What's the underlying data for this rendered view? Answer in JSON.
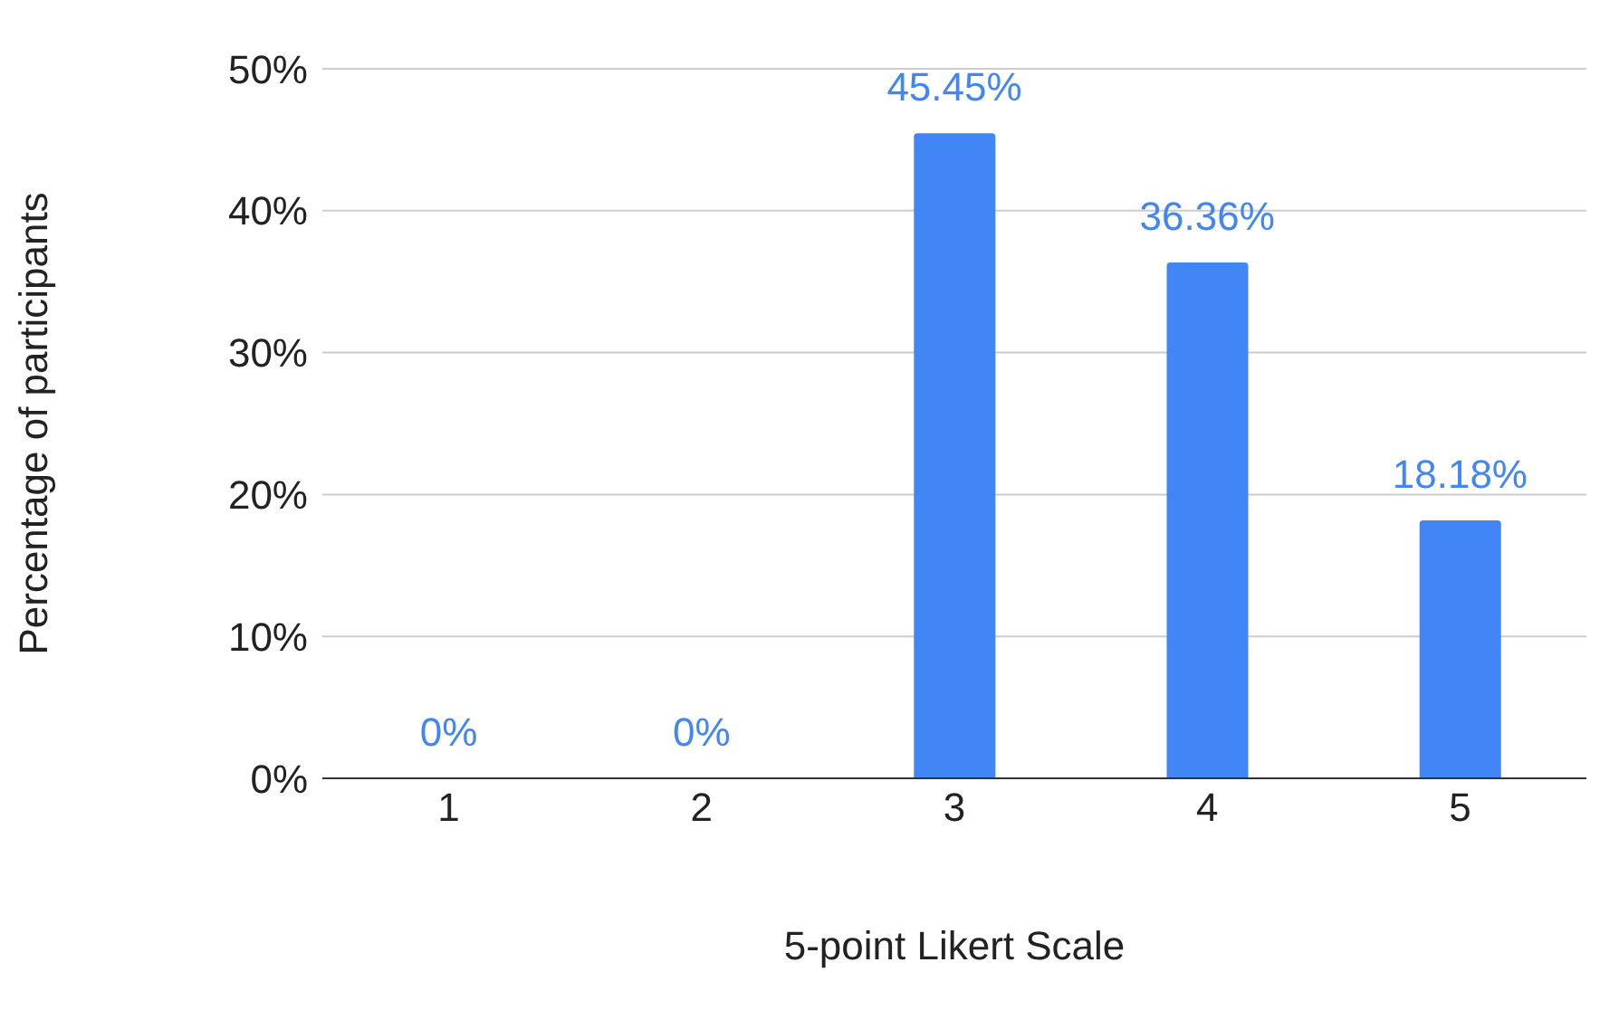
{
  "chart_data": {
    "type": "bar",
    "xlabel": "5-point Likert Scale",
    "ylabel": "Percentage of participants",
    "categories": [
      "1",
      "2",
      "3",
      "4",
      "5"
    ],
    "values": [
      0,
      0,
      45.45,
      36.36,
      18.18
    ],
    "value_labels": [
      "0%",
      "0%",
      "45.45%",
      "36.36%",
      "18.18%"
    ],
    "color": "#4285f4",
    "ylim": [
      0,
      50
    ],
    "yticks": [
      {
        "value": 0,
        "label": "0%"
      },
      {
        "value": 10,
        "label": "10%"
      },
      {
        "value": 20,
        "label": "20%"
      },
      {
        "value": 30,
        "label": "30%"
      },
      {
        "value": 40,
        "label": "40%"
      },
      {
        "value": 50,
        "label": "50%"
      }
    ],
    "grid": "y"
  }
}
